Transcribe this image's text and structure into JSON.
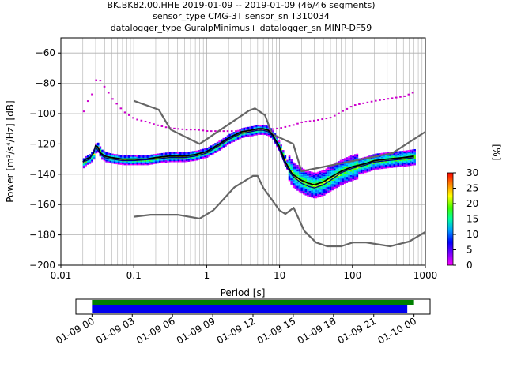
{
  "title_lines": [
    "BK.BK82.00.HHE   2019-01-09 -- 2019-01-09  (46/46 segments)",
    "sensor_type CMG-3T sensor_sn T310034",
    "datalogger_type GuralpMinimus+ datalogger_sn MINP-DF59"
  ],
  "chart_data": {
    "type": "heatmap",
    "xlabel": "Period [s]",
    "ylabel": "Power [m²/s⁴/Hz] [dB]",
    "x_scale": "log",
    "xlim": [
      0.01,
      1000
    ],
    "ylim": [
      -200,
      -50
    ],
    "x_ticks": [
      0.01,
      0.1,
      1,
      10,
      100,
      1000
    ],
    "x_tick_labels": [
      "0.01",
      "0.1",
      "1",
      "10",
      "100",
      "1000"
    ],
    "y_ticks": [
      -200,
      -180,
      -160,
      -140,
      -120,
      -100,
      -80,
      -60
    ],
    "y_tick_labels": [
      "−200",
      "−180",
      "−160",
      "−140",
      "−120",
      "−100",
      "−80",
      "−60"
    ],
    "grid": true,
    "colorbar": {
      "label": "[%]",
      "range": [
        0,
        30
      ],
      "ticks": [
        0,
        5,
        10,
        15,
        20,
        25,
        30
      ],
      "tick_labels": [
        "0",
        "5",
        "10",
        "15",
        "20",
        "25",
        "30"
      ]
    },
    "series": [
      {
        "kind": "noise-model-high",
        "color": "#666666",
        "x": [
          0.1,
          0.22,
          0.32,
          0.8,
          3.8,
          4.6,
          6.3,
          7.9,
          15.4,
          20,
          354.8,
          1000
        ],
        "y": [
          -91.5,
          -97.4,
          -110.5,
          -120,
          -98,
          -96.5,
          -101,
          -113.5,
          -120,
          -138,
          -126,
          -112
        ]
      },
      {
        "kind": "noise-model-low",
        "color": "#666666",
        "x": [
          0.1,
          0.17,
          0.4,
          0.8,
          1.24,
          2.4,
          4.3,
          5.0,
          6.0,
          10,
          12,
          15.6,
          21.9,
          31.6,
          45,
          70,
          101,
          154,
          328,
          600,
          1000
        ],
        "y": [
          -168,
          -166.7,
          -166.7,
          -169.2,
          -163.7,
          -148.6,
          -141.1,
          -141.1,
          -149,
          -163.8,
          -166.2,
          -162.1,
          -177.5,
          -185,
          -187.5,
          -187.5,
          -185,
          -185,
          -187.5,
          -184.4,
          -178
        ]
      },
      {
        "kind": "mean",
        "color": "#000000",
        "x": [
          0.02,
          0.022,
          0.025,
          0.028,
          0.03,
          0.032,
          0.035,
          0.04,
          0.05,
          0.07,
          0.1,
          0.15,
          0.2,
          0.3,
          0.5,
          0.7,
          1,
          1.5,
          2,
          3,
          4,
          5,
          6,
          7,
          8,
          10,
          12,
          15,
          20,
          25,
          30,
          40,
          50,
          70,
          100,
          150,
          200,
          300,
          500,
          700
        ],
        "y": [
          -132,
          -130,
          -129,
          -126,
          -121,
          -122,
          -126,
          -128,
          -129,
          -130,
          -130,
          -130,
          -129,
          -128,
          -128,
          -127,
          -125,
          -120,
          -116,
          -112,
          -111,
          -110,
          -110,
          -111,
          -114,
          -122,
          -132,
          -140,
          -144,
          -146,
          -147,
          -145,
          -142,
          -138,
          -135,
          -133,
          -131,
          -130,
          -129,
          -128
        ]
      },
      {
        "kind": "mode",
        "color": "#000080",
        "x": [
          0.02,
          0.025,
          0.03,
          0.035,
          0.04,
          0.05,
          0.07,
          0.1,
          0.2,
          0.3,
          0.5,
          0.7,
          1,
          1.5,
          2,
          3,
          4,
          5,
          6,
          7,
          8,
          10,
          12,
          15,
          20,
          25,
          30,
          40,
          50,
          70,
          100,
          150,
          200,
          300,
          500,
          700
        ],
        "y": [
          -132,
          -130,
          -122,
          -127,
          -129,
          -130,
          -131,
          -131,
          -130,
          -129,
          -129,
          -128,
          -126,
          -121,
          -117,
          -113,
          -112,
          -111,
          -111,
          -112,
          -115,
          -124,
          -134,
          -141,
          -146,
          -148,
          -149,
          -147,
          -144,
          -139,
          -136,
          -134,
          -132,
          -131,
          -130,
          -129
        ]
      },
      {
        "kind": "outlier-high",
        "color": "#cc00cc",
        "x": [
          0.02,
          0.022,
          0.025,
          0.028,
          0.03,
          0.032,
          0.035,
          0.04,
          0.05,
          0.07,
          0.1,
          0.15,
          0.2,
          0.3,
          0.5,
          0.7,
          1,
          2,
          3,
          5,
          7,
          10,
          15,
          20,
          30,
          50,
          70,
          100,
          200,
          500,
          700
        ],
        "y": [
          -98,
          -92,
          -89,
          -82,
          -76,
          -76,
          -79,
          -83,
          -90,
          -98,
          -103,
          -105,
          -107,
          -109,
          -110,
          -110,
          -111,
          -111,
          -111,
          -110,
          -110,
          -109,
          -107,
          -105,
          -104,
          -102,
          -98,
          -94,
          -91,
          -88,
          -85
        ]
      }
    ]
  },
  "timeline": {
    "tick_labels": [
      "01-09 00",
      "01-09 03",
      "01-09 06",
      "01-09 09",
      "01-09 12",
      "01-09 15",
      "01-09 18",
      "01-09 21",
      "01-10 00"
    ],
    "tick_hours": [
      0,
      3,
      6,
      9,
      12,
      15,
      18,
      21,
      24
    ],
    "range_hours": [
      -1.2,
      25.2
    ],
    "data_coverage": [
      {
        "start_hour": 0,
        "end_hour": 24,
        "color": "#008000"
      }
    ],
    "psd_coverage": [
      {
        "start_hour": 0,
        "end_hour": 23.5,
        "color": "#0000ee"
      }
    ]
  }
}
